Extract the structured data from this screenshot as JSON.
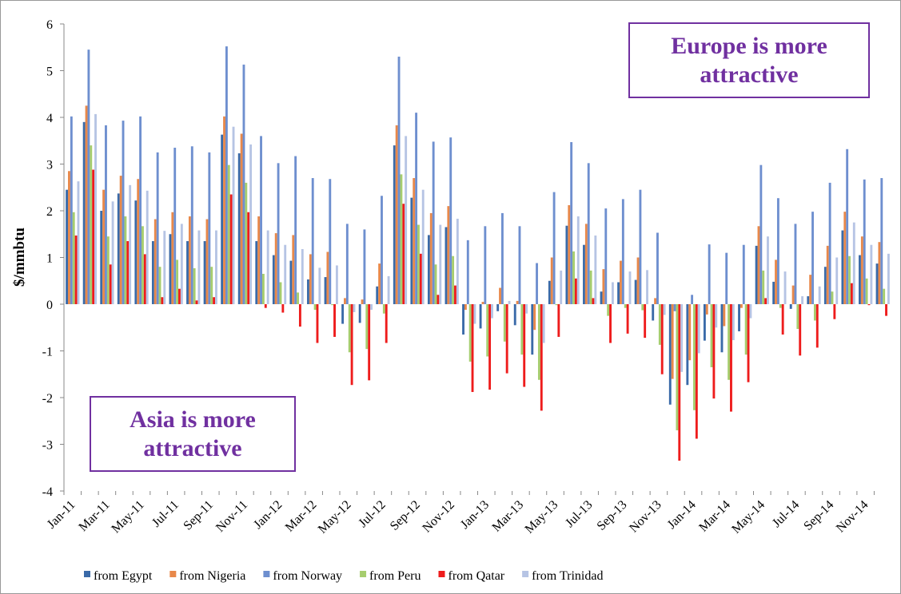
{
  "chart_data": {
    "type": "bar",
    "ylabel": "$/mmbtu",
    "annotations": [
      "Europe is more attractive",
      "Asia is more attractive"
    ],
    "categories": [
      "Jan-11",
      null,
      "Mar-11",
      null,
      "May-11",
      null,
      "Jul-11",
      null,
      "Sep-11",
      null,
      "Nov-11",
      null,
      "Jan-12",
      null,
      "Mar-12",
      null,
      "May-12",
      null,
      "Jul-12",
      null,
      "Sep-12",
      null,
      "Nov-12",
      null,
      "Jan-13",
      null,
      "Mar-13",
      null,
      "May-13",
      null,
      "Jul-13",
      null,
      "Sep-13",
      null,
      "Nov-13",
      null,
      "Jan-14",
      null,
      "Mar-14",
      null,
      "May-14",
      null,
      "Jul-14",
      null,
      "Sep-14",
      null,
      "Nov-14",
      null
    ],
    "series": [
      {
        "name": "from Egypt",
        "color": "#3a6aa8",
        "values": [
          2.45,
          3.9,
          2.0,
          2.37,
          2.22,
          1.35,
          1.5,
          1.35,
          1.35,
          3.63,
          3.23,
          1.35,
          1.05,
          0.93,
          0.53,
          0.58,
          -0.42,
          -0.4,
          0.38,
          3.4,
          2.28,
          1.48,
          1.65,
          -0.65,
          -0.52,
          -0.15,
          -0.45,
          -1.08,
          0.5,
          1.68,
          1.27,
          0.27,
          0.47,
          0.52,
          -0.35,
          -2.15,
          -1.73,
          -0.78,
          -1.03,
          -0.58,
          1.25,
          0.48,
          -0.1,
          0.17,
          0.8,
          1.58,
          1.05,
          0.87
        ]
      },
      {
        "name": "from Nigeria",
        "color": "#e8884a",
        "values": [
          2.85,
          4.25,
          2.45,
          2.75,
          2.68,
          1.82,
          1.97,
          1.88,
          1.82,
          4.02,
          3.65,
          1.88,
          1.52,
          1.48,
          1.07,
          1.12,
          0.13,
          0.1,
          0.87,
          3.83,
          2.7,
          1.95,
          2.1,
          -0.12,
          0.05,
          0.35,
          0.07,
          -0.55,
          1.0,
          2.12,
          1.72,
          0.75,
          0.93,
          1.0,
          0.13,
          -1.6,
          -1.2,
          -0.22,
          -0.47,
          -0.08,
          1.67,
          0.95,
          0.4,
          0.63,
          1.25,
          1.98,
          1.45,
          1.33
        ]
      },
      {
        "name": "from Norway",
        "color": "#6e8fcf",
        "values": [
          4.02,
          5.45,
          3.83,
          3.93,
          4.02,
          3.25,
          3.35,
          3.38,
          3.25,
          5.52,
          5.13,
          3.6,
          3.02,
          3.17,
          2.7,
          2.68,
          1.72,
          1.6,
          2.32,
          5.3,
          4.1,
          3.48,
          3.57,
          1.37,
          1.67,
          1.95,
          1.67,
          0.88,
          2.4,
          3.47,
          3.02,
          2.05,
          2.25,
          2.45,
          1.53,
          -0.15,
          0.2,
          1.28,
          1.1,
          1.27,
          2.98,
          2.27,
          1.72,
          1.98,
          2.6,
          3.32,
          2.67,
          2.7
        ]
      },
      {
        "name": "from Peru",
        "color": "#a6cd6e",
        "values": [
          1.97,
          3.4,
          1.45,
          1.88,
          1.67,
          0.8,
          0.95,
          0.77,
          0.8,
          2.98,
          2.6,
          0.65,
          0.47,
          0.25,
          -0.12,
          -0.02,
          -1.03,
          -0.96,
          -0.2,
          2.78,
          1.7,
          0.85,
          1.03,
          -1.23,
          -1.12,
          -0.8,
          -1.08,
          -1.62,
          -0.02,
          1.13,
          0.72,
          -0.25,
          -0.08,
          -0.13,
          -0.87,
          -2.7,
          -2.27,
          -1.35,
          -1.62,
          -1.08,
          0.72,
          -0.08,
          -0.53,
          -0.35,
          0.27,
          1.03,
          0.55,
          0.33
        ]
      },
      {
        "name": "from Qatar",
        "color": "#ee1c1c",
        "values": [
          1.47,
          2.88,
          0.85,
          1.35,
          1.07,
          0.15,
          0.33,
          0.08,
          0.15,
          2.35,
          1.97,
          -0.08,
          -0.18,
          -0.48,
          -0.83,
          -0.7,
          -1.73,
          -1.63,
          -0.83,
          2.15,
          1.08,
          0.2,
          0.4,
          -1.88,
          -1.83,
          -1.48,
          -1.77,
          -2.28,
          -0.7,
          0.55,
          0.13,
          -0.83,
          -0.63,
          -0.72,
          -1.5,
          -3.35,
          -2.88,
          -2.02,
          -2.3,
          -1.67,
          0.13,
          -0.65,
          -1.1,
          -0.93,
          -0.32,
          0.45,
          -0.02,
          -0.25
        ]
      },
      {
        "name": "from Trinidad",
        "color": "#b6c4e4",
        "values": [
          2.63,
          4.07,
          2.2,
          2.55,
          2.43,
          1.57,
          1.72,
          1.58,
          1.58,
          3.8,
          3.42,
          1.58,
          1.27,
          1.18,
          0.78,
          0.83,
          -0.17,
          -0.12,
          0.6,
          3.6,
          2.45,
          1.7,
          1.83,
          -0.42,
          -0.3,
          0.07,
          -0.2,
          -0.83,
          0.72,
          1.88,
          1.47,
          0.47,
          0.7,
          0.73,
          -0.23,
          -1.45,
          -1.05,
          -0.5,
          -0.77,
          -0.3,
          1.45,
          0.7,
          0.17,
          0.38,
          1.0,
          1.75,
          1.27,
          1.08
        ]
      }
    ],
    "ylim": [
      -4,
      6
    ],
    "yticks": [
      -4,
      -3,
      -2,
      -1,
      0,
      1,
      2,
      3,
      4,
      5,
      6
    ],
    "legend": "bottom"
  }
}
